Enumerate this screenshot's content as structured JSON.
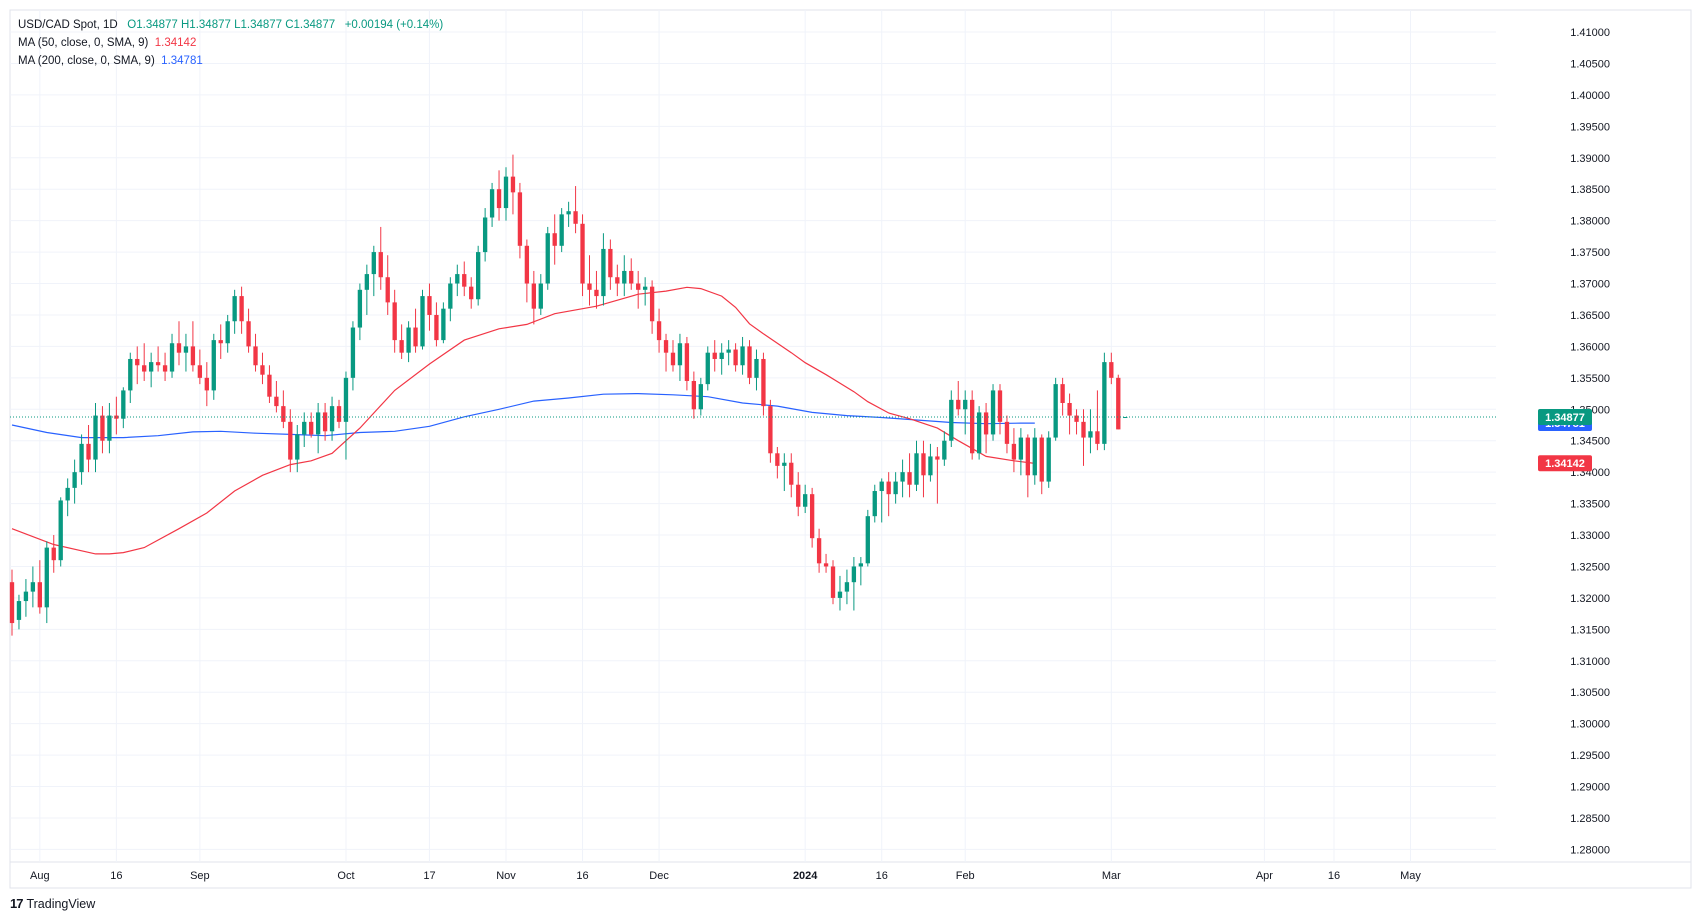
{
  "header": {
    "symbol": "USD/CAD Spot, 1D",
    "ohlc": "O1.34877 H1.34877 L1.34877 C1.34877",
    "change": "+0.00194 (+0.14%)",
    "ma50_label": "MA (50, close, 0, SMA, 9)",
    "ma50_value": "1.34142",
    "ma200_label": "MA (200, close, 0, SMA, 9)",
    "ma200_value": "1.34781"
  },
  "brand": {
    "name": "TradingView",
    "logo_text": "17"
  },
  "colors": {
    "up": "#089981",
    "down": "#f23645",
    "ma50": "#f23645",
    "ma200": "#2962ff",
    "grid": "#f0f3fa"
  },
  "chart_data": {
    "type": "candlestick",
    "y_ticks": [
      "1.41000",
      "1.40500",
      "1.40000",
      "1.39500",
      "1.39000",
      "1.38500",
      "1.38000",
      "1.37500",
      "1.37000",
      "1.36500",
      "1.36000",
      "1.35500",
      "1.35000",
      "1.34500",
      "1.34000",
      "1.33500",
      "1.33000",
      "1.32500",
      "1.32000",
      "1.31500",
      "1.31000",
      "1.30500",
      "1.30000",
      "1.29500",
      "1.29000",
      "1.28500",
      "1.28000"
    ],
    "ylim": [
      1.278,
      1.4135
    ],
    "x_ticks": [
      {
        "label": "Aug",
        "index": 4,
        "bold": false
      },
      {
        "label": "16",
        "index": 15,
        "bold": false
      },
      {
        "label": "Sep",
        "index": 27,
        "bold": false
      },
      {
        "label": "Oct",
        "index": 48,
        "bold": false
      },
      {
        "label": "17",
        "index": 60,
        "bold": false
      },
      {
        "label": "Nov",
        "index": 71,
        "bold": false
      },
      {
        "label": "16",
        "index": 82,
        "bold": false
      },
      {
        "label": "Dec",
        "index": 93,
        "bold": false
      },
      {
        "label": "2024",
        "index": 114,
        "bold": true
      },
      {
        "label": "16",
        "index": 125,
        "bold": false
      },
      {
        "label": "Feb",
        "index": 137,
        "bold": false
      },
      {
        "label": "Mar",
        "index": 158,
        "bold": false
      },
      {
        "label": "Apr",
        "index": 180,
        "bold": false
      },
      {
        "label": "16",
        "index": 190,
        "bold": false
      },
      {
        "label": "May",
        "index": 201,
        "bold": false
      }
    ],
    "x_index_range": [
      0,
      213
    ],
    "candles": [
      [
        1.3225,
        1.3245,
        1.314,
        1.316
      ],
      [
        1.3165,
        1.3205,
        1.315,
        1.3195
      ],
      [
        1.3195,
        1.323,
        1.317,
        1.321
      ],
      [
        1.321,
        1.325,
        1.3185,
        1.3225
      ],
      [
        1.3225,
        1.326,
        1.3175,
        1.3185
      ],
      [
        1.3185,
        1.329,
        1.316,
        1.328
      ],
      [
        1.328,
        1.33,
        1.324,
        1.326
      ],
      [
        1.326,
        1.336,
        1.325,
        1.3355
      ],
      [
        1.3355,
        1.339,
        1.333,
        1.3375
      ],
      [
        1.3375,
        1.342,
        1.335,
        1.34
      ],
      [
        1.34,
        1.346,
        1.338,
        1.3445
      ],
      [
        1.3445,
        1.3475,
        1.34,
        1.342
      ],
      [
        1.342,
        1.351,
        1.34,
        1.349
      ],
      [
        1.349,
        1.3505,
        1.343,
        1.345
      ],
      [
        1.345,
        1.351,
        1.343,
        1.349
      ],
      [
        1.349,
        1.352,
        1.346,
        1.3485
      ],
      [
        1.3485,
        1.3535,
        1.347,
        1.353
      ],
      [
        1.353,
        1.359,
        1.351,
        1.358
      ],
      [
        1.358,
        1.36,
        1.354,
        1.357
      ],
      [
        1.357,
        1.3605,
        1.3545,
        1.356
      ],
      [
        1.356,
        1.359,
        1.3535,
        1.3575
      ],
      [
        1.3575,
        1.36,
        1.356,
        1.357
      ],
      [
        1.357,
        1.359,
        1.3545,
        1.356
      ],
      [
        1.356,
        1.362,
        1.355,
        1.3605
      ],
      [
        1.3605,
        1.364,
        1.357,
        1.359
      ],
      [
        1.359,
        1.362,
        1.356,
        1.36
      ],
      [
        1.36,
        1.364,
        1.356,
        1.357
      ],
      [
        1.357,
        1.3595,
        1.354,
        1.355
      ],
      [
        1.355,
        1.3575,
        1.3505,
        1.353
      ],
      [
        1.353,
        1.362,
        1.3515,
        1.361
      ],
      [
        1.361,
        1.3635,
        1.358,
        1.3605
      ],
      [
        1.3605,
        1.365,
        1.359,
        1.364
      ],
      [
        1.364,
        1.369,
        1.362,
        1.368
      ],
      [
        1.368,
        1.3695,
        1.362,
        1.364
      ],
      [
        1.364,
        1.366,
        1.359,
        1.36
      ],
      [
        1.36,
        1.362,
        1.356,
        1.357
      ],
      [
        1.357,
        1.359,
        1.354,
        1.3555
      ],
      [
        1.3555,
        1.357,
        1.351,
        1.352
      ],
      [
        1.352,
        1.3545,
        1.3495,
        1.3505
      ],
      [
        1.3505,
        1.353,
        1.347,
        1.348
      ],
      [
        1.348,
        1.35,
        1.34,
        1.342
      ],
      [
        1.342,
        1.3475,
        1.34,
        1.346
      ],
      [
        1.346,
        1.3495,
        1.344,
        1.348
      ],
      [
        1.348,
        1.3495,
        1.3455,
        1.346
      ],
      [
        1.346,
        1.351,
        1.343,
        1.3495
      ],
      [
        1.3495,
        1.351,
        1.345,
        1.3465
      ],
      [
        1.3465,
        1.352,
        1.345,
        1.3505
      ],
      [
        1.3505,
        1.3515,
        1.347,
        1.348
      ],
      [
        1.348,
        1.356,
        1.342,
        1.355
      ],
      [
        1.355,
        1.364,
        1.353,
        1.363
      ],
      [
        1.363,
        1.37,
        1.361,
        1.369
      ],
      [
        1.369,
        1.373,
        1.365,
        1.3715
      ],
      [
        1.3715,
        1.376,
        1.368,
        1.375
      ],
      [
        1.375,
        1.379,
        1.369,
        1.371
      ],
      [
        1.371,
        1.3745,
        1.365,
        1.367
      ],
      [
        1.367,
        1.369,
        1.359,
        1.361
      ],
      [
        1.361,
        1.3635,
        1.358,
        1.359
      ],
      [
        1.359,
        1.364,
        1.3575,
        1.363
      ],
      [
        1.363,
        1.366,
        1.359,
        1.36
      ],
      [
        1.36,
        1.369,
        1.3595,
        1.368
      ],
      [
        1.368,
        1.37,
        1.3625,
        1.365
      ],
      [
        1.365,
        1.367,
        1.36,
        1.361
      ],
      [
        1.361,
        1.367,
        1.3605,
        1.366
      ],
      [
        1.366,
        1.371,
        1.364,
        1.37
      ],
      [
        1.37,
        1.373,
        1.368,
        1.3715
      ],
      [
        1.3715,
        1.3735,
        1.368,
        1.3695
      ],
      [
        1.3695,
        1.371,
        1.366,
        1.3675
      ],
      [
        1.3675,
        1.376,
        1.3665,
        1.375
      ],
      [
        1.375,
        1.382,
        1.3735,
        1.3805
      ],
      [
        1.3805,
        1.386,
        1.379,
        1.385
      ],
      [
        1.385,
        1.388,
        1.38,
        1.382
      ],
      [
        1.382,
        1.3885,
        1.38,
        1.387
      ],
      [
        1.387,
        1.3905,
        1.381,
        1.3845
      ],
      [
        1.3845,
        1.386,
        1.374,
        1.376
      ],
      [
        1.376,
        1.377,
        1.367,
        1.37
      ],
      [
        1.37,
        1.372,
        1.3635,
        1.366
      ],
      [
        1.366,
        1.3715,
        1.365,
        1.37
      ],
      [
        1.37,
        1.379,
        1.369,
        1.378
      ],
      [
        1.378,
        1.381,
        1.373,
        1.376
      ],
      [
        1.376,
        1.382,
        1.375,
        1.381
      ],
      [
        1.381,
        1.383,
        1.379,
        1.3815
      ],
      [
        1.3815,
        1.3855,
        1.378,
        1.3795
      ],
      [
        1.3795,
        1.381,
        1.368,
        1.37
      ],
      [
        1.37,
        1.3745,
        1.3665,
        1.369
      ],
      [
        1.369,
        1.372,
        1.366,
        1.368
      ],
      [
        1.368,
        1.378,
        1.3665,
        1.3755
      ],
      [
        1.3755,
        1.377,
        1.369,
        1.371
      ],
      [
        1.371,
        1.373,
        1.368,
        1.37
      ],
      [
        1.37,
        1.3745,
        1.368,
        1.372
      ],
      [
        1.372,
        1.374,
        1.369,
        1.37
      ],
      [
        1.37,
        1.372,
        1.366,
        1.369
      ],
      [
        1.369,
        1.371,
        1.3665,
        1.3695
      ],
      [
        1.3695,
        1.3705,
        1.362,
        1.364
      ],
      [
        1.364,
        1.366,
        1.359,
        1.361
      ],
      [
        1.361,
        1.362,
        1.356,
        1.359
      ],
      [
        1.359,
        1.361,
        1.356,
        1.357
      ],
      [
        1.357,
        1.362,
        1.3545,
        1.3605
      ],
      [
        1.3605,
        1.3615,
        1.353,
        1.3545
      ],
      [
        1.3545,
        1.356,
        1.3485,
        1.35
      ],
      [
        1.35,
        1.355,
        1.349,
        1.354
      ],
      [
        1.354,
        1.36,
        1.353,
        1.359
      ],
      [
        1.359,
        1.361,
        1.356,
        1.358
      ],
      [
        1.358,
        1.3605,
        1.3555,
        1.359
      ],
      [
        1.359,
        1.361,
        1.357,
        1.3595
      ],
      [
        1.3595,
        1.3605,
        1.356,
        1.357
      ],
      [
        1.357,
        1.3615,
        1.3555,
        1.36
      ],
      [
        1.36,
        1.361,
        1.354,
        1.355
      ],
      [
        1.355,
        1.3595,
        1.353,
        1.358
      ],
      [
        1.358,
        1.359,
        1.349,
        1.3505
      ],
      [
        1.3505,
        1.3515,
        1.3415,
        1.343
      ],
      [
        1.343,
        1.344,
        1.339,
        1.341
      ],
      [
        1.341,
        1.343,
        1.337,
        1.3415
      ],
      [
        1.3415,
        1.343,
        1.336,
        1.338
      ],
      [
        1.338,
        1.34,
        1.333,
        1.3345
      ],
      [
        1.3345,
        1.338,
        1.3335,
        1.3365
      ],
      [
        1.3365,
        1.3375,
        1.328,
        1.3295
      ],
      [
        1.3295,
        1.331,
        1.324,
        1.3255
      ],
      [
        1.3255,
        1.327,
        1.324,
        1.325
      ],
      [
        1.325,
        1.326,
        1.319,
        1.32
      ],
      [
        1.32,
        1.3235,
        1.318,
        1.321
      ],
      [
        1.321,
        1.3245,
        1.319,
        1.3225
      ],
      [
        1.3225,
        1.3265,
        1.318,
        1.325
      ],
      [
        1.325,
        1.3265,
        1.322,
        1.3255
      ],
      [
        1.3255,
        1.334,
        1.325,
        1.333
      ],
      [
        1.333,
        1.338,
        1.332,
        1.337
      ],
      [
        1.337,
        1.339,
        1.332,
        1.3385
      ],
      [
        1.3385,
        1.34,
        1.333,
        1.3365
      ],
      [
        1.3365,
        1.34,
        1.335,
        1.3385
      ],
      [
        1.3385,
        1.342,
        1.336,
        1.34
      ],
      [
        1.34,
        1.343,
        1.336,
        1.338
      ],
      [
        1.338,
        1.345,
        1.337,
        1.343
      ],
      [
        1.343,
        1.345,
        1.336,
        1.3395
      ],
      [
        1.3395,
        1.3445,
        1.3385,
        1.3425
      ],
      [
        1.3425,
        1.344,
        1.335,
        1.342
      ],
      [
        1.342,
        1.3465,
        1.341,
        1.345
      ],
      [
        1.345,
        1.353,
        1.344,
        1.3515
      ],
      [
        1.3515,
        1.3545,
        1.349,
        1.35
      ],
      [
        1.35,
        1.353,
        1.346,
        1.3515
      ],
      [
        1.3515,
        1.353,
        1.342,
        1.343
      ],
      [
        1.343,
        1.3505,
        1.342,
        1.3495
      ],
      [
        1.3495,
        1.351,
        1.343,
        1.346
      ],
      [
        1.346,
        1.354,
        1.345,
        1.353
      ],
      [
        1.353,
        1.354,
        1.346,
        1.348
      ],
      [
        1.348,
        1.349,
        1.343,
        1.3445
      ],
      [
        1.3445,
        1.347,
        1.34,
        1.342
      ],
      [
        1.342,
        1.347,
        1.3395,
        1.3455
      ],
      [
        1.3455,
        1.346,
        1.336,
        1.3395
      ],
      [
        1.3395,
        1.347,
        1.338,
        1.3455
      ],
      [
        1.3455,
        1.346,
        1.3365,
        1.3385
      ],
      [
        1.3385,
        1.3465,
        1.3375,
        1.3455
      ],
      [
        1.3455,
        1.355,
        1.345,
        1.354
      ],
      [
        1.354,
        1.355,
        1.349,
        1.351
      ],
      [
        1.351,
        1.3525,
        1.346,
        1.349
      ],
      [
        1.349,
        1.35,
        1.346,
        1.348
      ],
      [
        1.348,
        1.35,
        1.341,
        1.3455
      ],
      [
        1.3455,
        1.35,
        1.343,
        1.3465
      ],
      [
        1.3465,
        1.353,
        1.3435,
        1.3445
      ],
      [
        1.3445,
        1.359,
        1.3435,
        1.3575
      ],
      [
        1.3575,
        1.359,
        1.354,
        1.355
      ],
      [
        1.355,
        1.3555,
        1.3468,
        1.3468
      ],
      [
        1.34877,
        1.34877,
        1.34877,
        1.34877
      ]
    ],
    "ma50": [
      [
        0,
        1.331
      ],
      [
        6,
        1.3285
      ],
      [
        10,
        1.3275
      ],
      [
        12,
        1.327
      ],
      [
        14,
        1.327
      ],
      [
        16,
        1.3272
      ],
      [
        19,
        1.328
      ],
      [
        24,
        1.331
      ],
      [
        28,
        1.3335
      ],
      [
        32,
        1.337
      ],
      [
        36,
        1.3395
      ],
      [
        40,
        1.3412
      ],
      [
        43,
        1.3418
      ],
      [
        46,
        1.343
      ],
      [
        50,
        1.347
      ],
      [
        55,
        1.353
      ],
      [
        60,
        1.3572
      ],
      [
        65,
        1.361
      ],
      [
        70,
        1.3628
      ],
      [
        74,
        1.3635
      ],
      [
        78,
        1.3652
      ],
      [
        84,
        1.3664
      ],
      [
        90,
        1.3683
      ],
      [
        94,
        1.3688
      ],
      [
        97,
        1.3694
      ],
      [
        99,
        1.3692
      ],
      [
        102,
        1.368
      ],
      [
        104,
        1.3662
      ],
      [
        106,
        1.3636
      ],
      [
        108,
        1.362
      ],
      [
        112,
        1.359
      ],
      [
        114,
        1.3574
      ],
      [
        117,
        1.3555
      ],
      [
        121,
        1.3528
      ],
      [
        123,
        1.3512
      ],
      [
        126,
        1.3494
      ],
      [
        129,
        1.3485
      ],
      [
        133,
        1.347
      ],
      [
        136,
        1.345
      ],
      [
        140,
        1.3425
      ],
      [
        144,
        1.3418
      ],
      [
        147,
        1.3414
      ]
    ],
    "ma200": [
      [
        0,
        1.3475
      ],
      [
        5,
        1.3463
      ],
      [
        10,
        1.3455
      ],
      [
        16,
        1.3455
      ],
      [
        21,
        1.3458
      ],
      [
        26,
        1.3464
      ],
      [
        30,
        1.3465
      ],
      [
        35,
        1.3462
      ],
      [
        40,
        1.346
      ],
      [
        45,
        1.3458
      ],
      [
        50,
        1.3463
      ],
      [
        55,
        1.3465
      ],
      [
        60,
        1.3473
      ],
      [
        65,
        1.3488
      ],
      [
        70,
        1.35
      ],
      [
        75,
        1.3513
      ],
      [
        80,
        1.3518
      ],
      [
        85,
        1.3524
      ],
      [
        90,
        1.3525
      ],
      [
        95,
        1.3523
      ],
      [
        100,
        1.352
      ],
      [
        105,
        1.351
      ],
      [
        110,
        1.3505
      ],
      [
        115,
        1.3495
      ],
      [
        120,
        1.349
      ],
      [
        125,
        1.3487
      ],
      [
        130,
        1.3483
      ],
      [
        135,
        1.3479
      ],
      [
        140,
        1.3477
      ],
      [
        145,
        1.3478
      ],
      [
        147,
        1.3478
      ]
    ],
    "last_price": "1.34877",
    "ma200_last": "1.34781",
    "ma50_last": "1.34142"
  }
}
